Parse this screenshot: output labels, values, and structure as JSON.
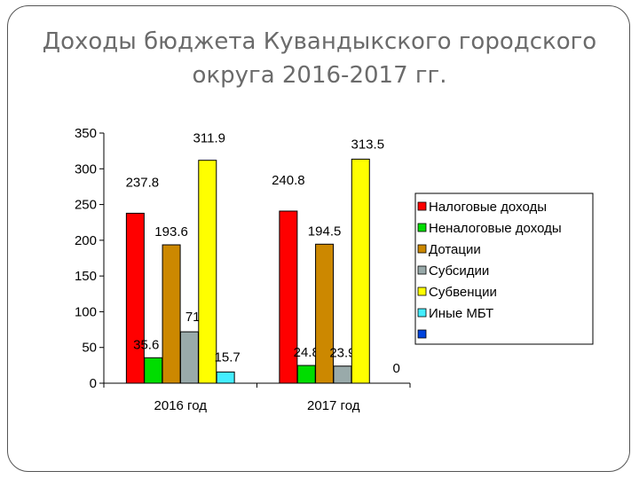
{
  "chart_data": {
    "type": "bar",
    "title": [
      "Доходы бюджета Кувандыкского городского",
      "округа 2016-2017 гг."
    ],
    "categories": [
      "2016 год",
      "2017 год"
    ],
    "ylim": [
      0,
      350
    ],
    "yticks": [
      0,
      50,
      100,
      150,
      200,
      250,
      300,
      350
    ],
    "grid": false,
    "legend_position": "right",
    "series": [
      {
        "name": "Налоговые доходы",
        "color": "#ff0000",
        "values": [
          237.8,
          240.8
        ]
      },
      {
        "name": "Неналоговые доходы",
        "color": "#00dd00",
        "values": [
          35.6,
          24.8
        ]
      },
      {
        "name": "Дотации",
        "color": "#cc8800",
        "values": [
          193.6,
          194.5
        ]
      },
      {
        "name": "Субсидии",
        "color": "#99aaaa",
        "values": [
          71.9,
          23.9
        ]
      },
      {
        "name": "Субвенции",
        "color": "#ffff00",
        "values": [
          311.9,
          313.5
        ]
      },
      {
        "name": "Иные МБТ",
        "color": "#44eeff",
        "values": [
          15.7,
          0
        ]
      },
      {
        "name": "",
        "color": "#0044dd",
        "values": [
          null,
          null
        ]
      }
    ],
    "data_labels": [
      [
        "237.8",
        "240.8"
      ],
      [
        "35.6",
        "24.8"
      ],
      [
        "193.6",
        "194.5"
      ],
      [
        "71.9",
        "23.9"
      ],
      [
        "311.9",
        "313.5"
      ],
      [
        "15.7",
        "0"
      ],
      [
        "",
        ""
      ]
    ]
  }
}
